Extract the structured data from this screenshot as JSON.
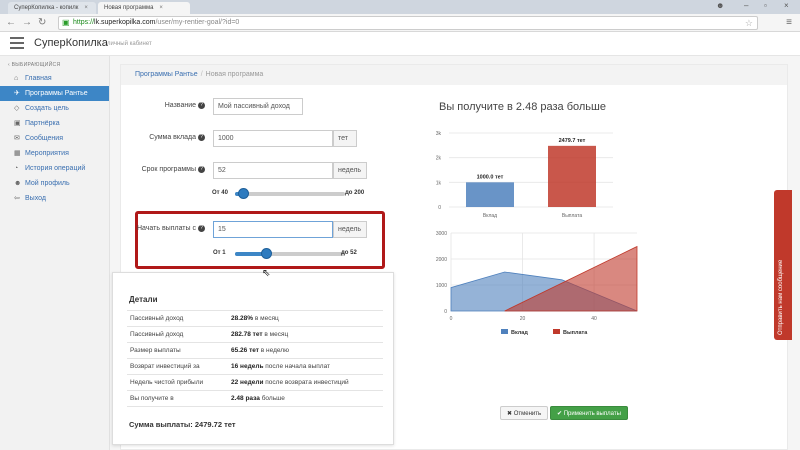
{
  "browser": {
    "tabs": [
      {
        "title": "СуперКопилка - копилк",
        "active": false
      },
      {
        "title": "Новая программа",
        "active": true
      }
    ],
    "url_scheme": "https://",
    "url_host": "lk.superkopilka.com",
    "url_path": "/user/my-rentier-goal/?id=0"
  },
  "header": {
    "brand": "СуперКопилка",
    "subtitle": "личный кабинет"
  },
  "sidebar": {
    "section": "ВЫБИРАЮЩИЙСЯ",
    "items": [
      {
        "label": "Главная",
        "icon": "home-icon",
        "glyph": "⌂"
      },
      {
        "label": "Программы Рантье",
        "icon": "rocket-icon",
        "glyph": "✈"
      },
      {
        "label": "Создать цель",
        "icon": "target-icon",
        "glyph": "◇"
      },
      {
        "label": "Партнёрка",
        "icon": "partners-icon",
        "glyph": "▣"
      },
      {
        "label": "Сообщения",
        "icon": "envelope-icon",
        "glyph": "✉"
      },
      {
        "label": "Мероприятия",
        "icon": "calendar-icon",
        "glyph": "▦"
      },
      {
        "label": "История операций",
        "icon": "history-icon",
        "glyph": "◔"
      },
      {
        "label": "Мой профиль",
        "icon": "user-icon",
        "glyph": "☻"
      },
      {
        "label": "Выход",
        "icon": "logout-icon",
        "glyph": "⇦"
      }
    ]
  },
  "breadcrumb": {
    "parent": "Программы Рантье",
    "current": "Новая программа"
  },
  "form": {
    "name_label": "Название",
    "name_value": "Мой пассивный доход",
    "amount_label": "Сумма вклада",
    "amount_value": "1000",
    "amount_unit": "тет",
    "term_label": "Срок программы",
    "term_value": "52",
    "term_unit": "недель",
    "term_min": "От 40",
    "term_max": "до 200",
    "term_slider_fraction": 0.075,
    "start_label": "Начать выплаты с",
    "start_value": "15",
    "start_unit": "недель",
    "start_min": "От 1",
    "start_max": "до 52",
    "start_slider_fraction": 0.28
  },
  "details": {
    "title": "Детали",
    "rows": [
      {
        "label": "Пассивный доход",
        "value": "28.28%",
        "suffix": "в месяц"
      },
      {
        "label": "Пассивный доход",
        "value": "282.78 тет",
        "suffix": "в месяц"
      },
      {
        "label": "Размер выплаты",
        "value": "65.26 тет",
        "suffix": "в неделю"
      },
      {
        "label": "Возврат инвестиций за",
        "value": "16 недель",
        "suffix": "после начала выплат"
      },
      {
        "label": "Недель чистой прибыли",
        "value": "22 недели",
        "suffix": "после возврата инвестиций"
      },
      {
        "label": "Вы получите в",
        "value": "2.48 раза",
        "suffix": "больше"
      }
    ],
    "total": "Сумма выплаты: 2479.72 тет"
  },
  "result": {
    "title": "Вы получите в 2.48 раза больше"
  },
  "buttons": {
    "cancel": "Отменить",
    "apply": "Применить выплаты"
  },
  "feedback": "Отправить нам сообщение",
  "colors": {
    "blue": "#4f81bd",
    "red": "#c0392b",
    "sidebar_active": "#3d86c6",
    "highlight": "#b01818"
  },
  "chart_data": [
    {
      "type": "bar",
      "categories": [
        "Вклад",
        "Выплата"
      ],
      "values": [
        1000,
        2479.7
      ],
      "data_labels": [
        "1000.0 тет",
        "2479.7 тет"
      ],
      "yticks": [
        "0",
        "1k",
        "2k",
        "3k"
      ],
      "ylim": [
        0,
        3000
      ],
      "colors": [
        "#4f81bd",
        "#c0392b"
      ]
    },
    {
      "type": "area",
      "xticks": [
        "0",
        "20",
        "40"
      ],
      "yticks": [
        "0",
        "1000",
        "2000",
        "3000"
      ],
      "xlim": [
        0,
        52
      ],
      "ylim": [
        0,
        3000
      ],
      "legend": "bottom",
      "series": [
        {
          "name": "Вклад",
          "color": "#4f81bd",
          "points": [
            [
              0,
              900
            ],
            [
              15,
              1500
            ],
            [
              31,
              1200
            ],
            [
              52,
              0
            ]
          ]
        },
        {
          "name": "Выплата",
          "color": "#c0392b",
          "points": [
            [
              15,
              0
            ],
            [
              52,
              2480
            ]
          ]
        }
      ]
    }
  ]
}
